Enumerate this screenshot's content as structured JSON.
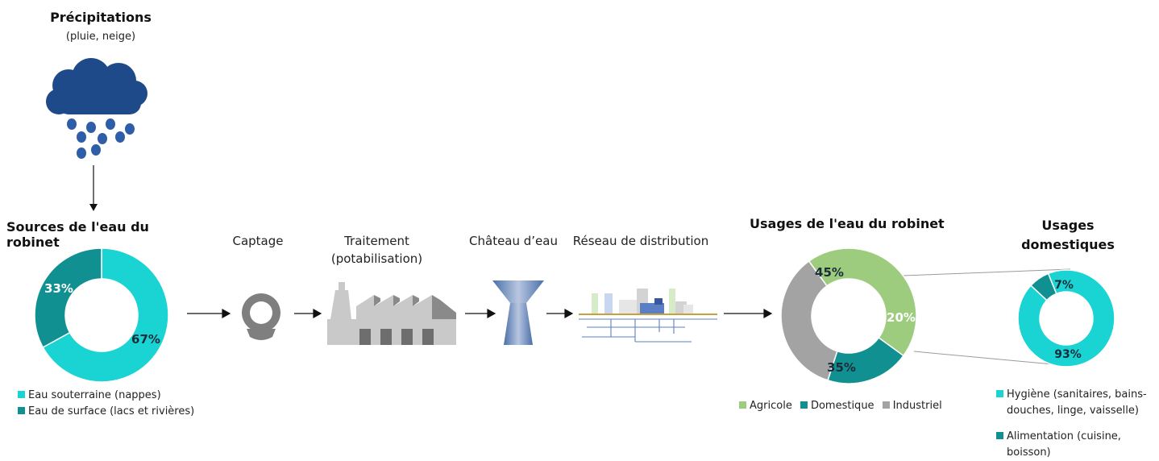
{
  "precipitations": {
    "title": "Précipitations",
    "subtitle": "(pluie, neige)"
  },
  "sources": {
    "title": "Sources de l'eau du robinet",
    "legend": [
      {
        "label": "Eau souterraine (nappes)",
        "color": "#1ad3d3"
      },
      {
        "label": "Eau de surface (lacs et rivières)",
        "color": "#109090"
      }
    ],
    "slices": [
      {
        "value": 67,
        "label": "67%",
        "color": "#1ad3d3"
      },
      {
        "value": 33,
        "label": "33%",
        "color": "#109090"
      }
    ]
  },
  "stages": {
    "captage": "Captage",
    "traitement_1": "Traitement",
    "traitement_2": "(potabilisation)",
    "chateau": "Château d’eau",
    "reseau": "Réseau de distribution"
  },
  "usages": {
    "title": "Usages de l'eau du robinet",
    "slices": [
      {
        "value": 45,
        "label": "45%",
        "color": "#9dcc7f",
        "name": "Agricole"
      },
      {
        "value": 20,
        "label": "20%",
        "color": "#109090",
        "name": "Domestique"
      },
      {
        "value": 35,
        "label": "35%",
        "color": "#a3a3a3",
        "name": "Industriel"
      }
    ],
    "legend": [
      {
        "label": "Agricole",
        "color": "#9dcc7f"
      },
      {
        "label": "Domestique",
        "color": "#109090"
      },
      {
        "label": "Industriel",
        "color": "#a3a3a3"
      }
    ]
  },
  "domestic": {
    "title_1": "Usages",
    "title_2": "domestiques",
    "slices": [
      {
        "value": 93,
        "label": "93%",
        "color": "#1ad3d3"
      },
      {
        "value": 7,
        "label": "7%",
        "color": "#109090"
      }
    ],
    "legend": [
      {
        "line1": "Hygiène (sanitaires, bains-",
        "line2": "douches, linge, vaisselle)",
        "color": "#1ad3d3"
      },
      {
        "line1": "Alimentation (cuisine,",
        "line2": "boisson)",
        "color": "#109090"
      }
    ]
  },
  "chart_data": [
    {
      "type": "pie",
      "title": "Sources de l'eau du robinet",
      "categories": [
        "Eau souterraine (nappes)",
        "Eau de surface (lacs et rivières)"
      ],
      "values": [
        67,
        33
      ]
    },
    {
      "type": "pie",
      "title": "Usages de l'eau du robinet",
      "categories": [
        "Agricole",
        "Domestique",
        "Industriel"
      ],
      "values": [
        45,
        20,
        35
      ]
    },
    {
      "type": "pie",
      "title": "Usages domestiques",
      "categories": [
        "Hygiène (sanitaires, bains-douches, linge, vaisselle)",
        "Alimentation (cuisine, boisson)"
      ],
      "values": [
        93,
        7
      ]
    }
  ]
}
